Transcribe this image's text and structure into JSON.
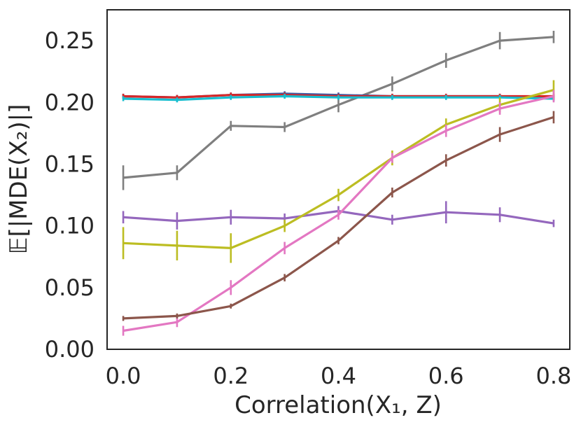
{
  "chart_data": {
    "type": "line",
    "title": "",
    "xlabel": "Correlation(X₁, Z)",
    "ylabel": "𝔼[|MDE(X₂)|]",
    "x": [
      0.0,
      0.1,
      0.2,
      0.3,
      0.4,
      0.5,
      0.6,
      0.7,
      0.8
    ],
    "xlim": [
      -0.03,
      0.83
    ],
    "ylim": [
      0.0,
      0.275
    ],
    "xticks": [
      "0.0",
      "0.2",
      "0.4",
      "0.6",
      "0.8"
    ],
    "xtick_values": [
      0.0,
      0.2,
      0.4,
      0.6,
      0.8
    ],
    "yticks": [
      "0.00",
      "0.05",
      "0.10",
      "0.15",
      "0.20",
      "0.25"
    ],
    "ytick_values": [
      0.0,
      0.05,
      0.1,
      0.15,
      0.2,
      0.25
    ],
    "grid": false,
    "series": [
      {
        "name": "gray",
        "color": "#7f7f7f",
        "values": [
          0.139,
          0.143,
          0.181,
          0.18,
          0.198,
          0.215,
          0.234,
          0.25,
          0.253
        ],
        "errors": [
          0.01,
          0.006,
          0.004,
          0.004,
          0.006,
          0.006,
          0.006,
          0.007,
          0.005
        ]
      },
      {
        "name": "blue",
        "color": "#3b5ba5",
        "values": [
          0.205,
          0.204,
          0.206,
          0.207,
          0.206,
          0.205,
          0.205,
          0.205,
          0.204
        ],
        "errors": [
          0.002,
          0.002,
          0.002,
          0.002,
          0.002,
          0.002,
          0.002,
          0.002,
          0.002
        ]
      },
      {
        "name": "red",
        "color": "#d62728",
        "values": [
          0.205,
          0.204,
          0.206,
          0.206,
          0.205,
          0.205,
          0.205,
          0.205,
          0.205
        ],
        "errors": [
          0.002,
          0.002,
          0.002,
          0.002,
          0.002,
          0.002,
          0.002,
          0.002,
          0.002
        ]
      },
      {
        "name": "cyan",
        "color": "#17becf",
        "values": [
          0.203,
          0.202,
          0.204,
          0.205,
          0.204,
          0.204,
          0.204,
          0.204,
          0.203
        ],
        "errors": [
          0.002,
          0.002,
          0.002,
          0.002,
          0.002,
          0.002,
          0.002,
          0.002,
          0.002
        ]
      },
      {
        "name": "purple",
        "color": "#9467bd",
        "values": [
          0.107,
          0.104,
          0.107,
          0.106,
          0.112,
          0.105,
          0.111,
          0.109,
          0.102
        ],
        "errors": [
          0.005,
          0.007,
          0.006,
          0.004,
          0.004,
          0.004,
          0.009,
          0.006,
          0.003
        ]
      },
      {
        "name": "olive",
        "color": "#bcbd22",
        "values": [
          0.086,
          0.084,
          0.082,
          0.1,
          0.125,
          0.155,
          0.182,
          0.198,
          0.21
        ],
        "errors": [
          0.013,
          0.012,
          0.012,
          0.005,
          0.005,
          0.006,
          0.005,
          0.006,
          0.008
        ]
      },
      {
        "name": "pink",
        "color": "#e377c2",
        "values": [
          0.015,
          0.022,
          0.05,
          0.082,
          0.109,
          0.155,
          0.177,
          0.195,
          0.205
        ],
        "errors": [
          0.004,
          0.004,
          0.006,
          0.005,
          0.004,
          0.004,
          0.005,
          0.005,
          0.005
        ]
      },
      {
        "name": "brown",
        "color": "#8c564b",
        "values": [
          0.025,
          0.027,
          0.035,
          0.058,
          0.088,
          0.127,
          0.153,
          0.174,
          0.188
        ],
        "errors": [
          0.002,
          0.002,
          0.002,
          0.003,
          0.003,
          0.004,
          0.005,
          0.006,
          0.005
        ]
      }
    ]
  }
}
